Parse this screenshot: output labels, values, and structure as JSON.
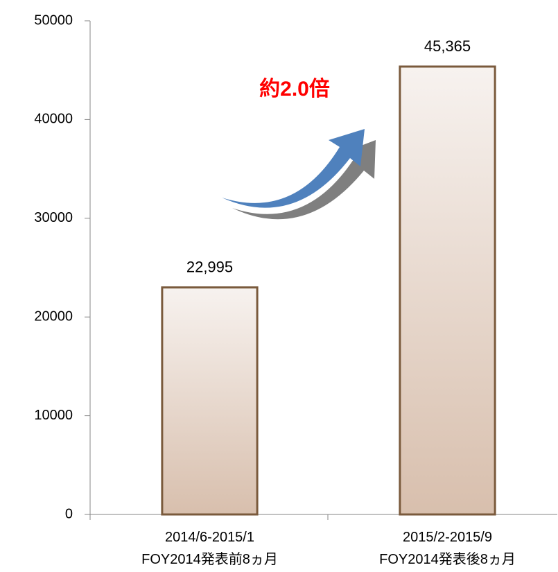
{
  "chart_data": {
    "type": "bar",
    "categories": [
      [
        "2014/6-2015/1",
        "FOY2014発表前8ヵ月"
      ],
      [
        "2015/2-2015/9",
        "FOY2014発表後8ヵ月"
      ]
    ],
    "values": [
      22995,
      45365
    ],
    "value_labels": [
      "22,995",
      "45,365"
    ],
    "color": "#d8bfad",
    "edge_color": "#7a5a3c",
    "ylim": [
      0,
      50000
    ],
    "yticks": [
      0,
      10000,
      20000,
      30000,
      40000,
      50000
    ],
    "grid": false,
    "annotation": "約2.0倍"
  }
}
